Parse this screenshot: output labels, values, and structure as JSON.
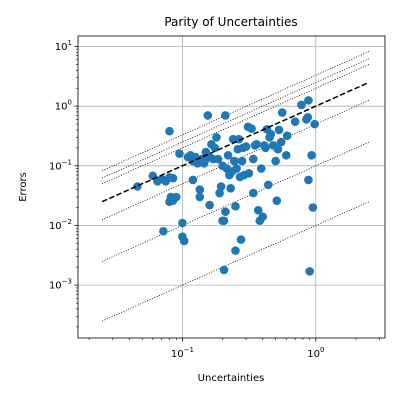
{
  "chart_data": {
    "type": "scatter",
    "title": "Parity of Uncertainties",
    "xlabel": "Uncertainties",
    "ylabel": "Errors",
    "xscale": "log",
    "yscale": "log",
    "xlim": [
      0.0165,
      3.3
    ],
    "ylim": [
      0.00013,
      15
    ],
    "grid": true,
    "x_ticks": [
      {
        "value": 0.1,
        "base": "10",
        "exp": "−1"
      },
      {
        "value": 1,
        "base": "10",
        "exp": "0"
      }
    ],
    "y_ticks": [
      {
        "value": 0.001,
        "base": "10",
        "exp": "−3"
      },
      {
        "value": 0.01,
        "base": "10",
        "exp": "−2"
      },
      {
        "value": 0.1,
        "base": "10",
        "exp": "−1"
      },
      {
        "value": 1,
        "base": "10",
        "exp": "0"
      },
      {
        "value": 10,
        "base": "10",
        "exp": "1"
      }
    ],
    "marker_color": "#1f77b4",
    "parity_line": {
      "style": "dashed",
      "color": "#000000",
      "slope": 1,
      "x_range": [
        0.025,
        2.5
      ]
    },
    "reference_lines": {
      "style": "dotted",
      "color": "#000000",
      "x_range": [
        0.025,
        2.5
      ],
      "factors": [
        0.01,
        0.1,
        0.5,
        2,
        2.5,
        3.3
      ]
    },
    "points": [
      {
        "x": 0.046,
        "y": 0.045
      },
      {
        "x": 0.06,
        "y": 0.068
      },
      {
        "x": 0.065,
        "y": 0.055
      },
      {
        "x": 0.07,
        "y": 0.06
      },
      {
        "x": 0.075,
        "y": 0.055
      },
      {
        "x": 0.08,
        "y": 0.38
      },
      {
        "x": 0.08,
        "y": 0.064
      },
      {
        "x": 0.085,
        "y": 0.062
      },
      {
        "x": 0.072,
        "y": 0.008
      },
      {
        "x": 0.08,
        "y": 0.025
      },
      {
        "x": 0.082,
        "y": 0.03
      },
      {
        "x": 0.085,
        "y": 0.026
      },
      {
        "x": 0.09,
        "y": 0.03
      },
      {
        "x": 0.095,
        "y": 0.16
      },
      {
        "x": 0.1,
        "y": 0.011
      },
      {
        "x": 0.1,
        "y": 0.0065
      },
      {
        "x": 0.103,
        "y": 0.0055
      },
      {
        "x": 0.11,
        "y": 0.14
      },
      {
        "x": 0.115,
        "y": 0.15
      },
      {
        "x": 0.12,
        "y": 0.12
      },
      {
        "x": 0.12,
        "y": 0.058
      },
      {
        "x": 0.125,
        "y": 0.14
      },
      {
        "x": 0.13,
        "y": 0.11
      },
      {
        "x": 0.135,
        "y": 0.04
      },
      {
        "x": 0.135,
        "y": 0.03
      },
      {
        "x": 0.14,
        "y": 0.13
      },
      {
        "x": 0.145,
        "y": 0.11
      },
      {
        "x": 0.15,
        "y": 0.17
      },
      {
        "x": 0.15,
        "y": 0.13
      },
      {
        "x": 0.155,
        "y": 0.7
      },
      {
        "x": 0.16,
        "y": 0.14
      },
      {
        "x": 0.16,
        "y": 0.022
      },
      {
        "x": 0.165,
        "y": 0.23
      },
      {
        "x": 0.17,
        "y": 0.13
      },
      {
        "x": 0.175,
        "y": 0.2
      },
      {
        "x": 0.18,
        "y": 0.3
      },
      {
        "x": 0.185,
        "y": 0.13
      },
      {
        "x": 0.19,
        "y": 0.035
      },
      {
        "x": 0.195,
        "y": 0.045
      },
      {
        "x": 0.2,
        "y": 0.1
      },
      {
        "x": 0.2,
        "y": 0.012
      },
      {
        "x": 0.205,
        "y": 0.0018
      },
      {
        "x": 0.205,
        "y": 0.012
      },
      {
        "x": 0.21,
        "y": 0.7
      },
      {
        "x": 0.21,
        "y": 0.017
      },
      {
        "x": 0.215,
        "y": 0.09
      },
      {
        "x": 0.22,
        "y": 0.15
      },
      {
        "x": 0.225,
        "y": 0.07
      },
      {
        "x": 0.23,
        "y": 0.042
      },
      {
        "x": 0.235,
        "y": 0.08
      },
      {
        "x": 0.24,
        "y": 0.28
      },
      {
        "x": 0.245,
        "y": 0.12
      },
      {
        "x": 0.25,
        "y": 0.0038
      },
      {
        "x": 0.25,
        "y": 0.021
      },
      {
        "x": 0.255,
        "y": 0.09
      },
      {
        "x": 0.26,
        "y": 0.19
      },
      {
        "x": 0.265,
        "y": 0.28
      },
      {
        "x": 0.27,
        "y": 0.065
      },
      {
        "x": 0.275,
        "y": 0.0058
      },
      {
        "x": 0.28,
        "y": 0.12
      },
      {
        "x": 0.285,
        "y": 0.2
      },
      {
        "x": 0.29,
        "y": 0.07
      },
      {
        "x": 0.3,
        "y": 0.21
      },
      {
        "x": 0.31,
        "y": 0.45
      },
      {
        "x": 0.315,
        "y": 0.075
      },
      {
        "x": 0.33,
        "y": 0.42
      },
      {
        "x": 0.34,
        "y": 0.13
      },
      {
        "x": 0.34,
        "y": 0.035
      },
      {
        "x": 0.35,
        "y": 0.22
      },
      {
        "x": 0.36,
        "y": 0.23
      },
      {
        "x": 0.37,
        "y": 0.018
      },
      {
        "x": 0.38,
        "y": 0.012
      },
      {
        "x": 0.39,
        "y": 0.09
      },
      {
        "x": 0.4,
        "y": 0.014
      },
      {
        "x": 0.41,
        "y": 0.22
      },
      {
        "x": 0.42,
        "y": 0.2
      },
      {
        "x": 0.43,
        "y": 0.41
      },
      {
        "x": 0.44,
        "y": 0.048
      },
      {
        "x": 0.45,
        "y": 0.3
      },
      {
        "x": 0.46,
        "y": 0.34
      },
      {
        "x": 0.48,
        "y": 0.22
      },
      {
        "x": 0.5,
        "y": 0.12
      },
      {
        "x": 0.51,
        "y": 0.026
      },
      {
        "x": 0.52,
        "y": 0.19
      },
      {
        "x": 0.53,
        "y": 0.4
      },
      {
        "x": 0.55,
        "y": 0.25
      },
      {
        "x": 0.56,
        "y": 0.78
      },
      {
        "x": 0.6,
        "y": 0.15
      },
      {
        "x": 0.61,
        "y": 0.32
      },
      {
        "x": 0.7,
        "y": 0.55
      },
      {
        "x": 0.78,
        "y": 1.05
      },
      {
        "x": 0.85,
        "y": 0.6
      },
      {
        "x": 0.87,
        "y": 0.65
      },
      {
        "x": 0.88,
        "y": 1.25
      },
      {
        "x": 0.88,
        "y": 0.058
      },
      {
        "x": 0.9,
        "y": 0.0017
      },
      {
        "x": 0.93,
        "y": 0.15
      },
      {
        "x": 0.95,
        "y": 0.02
      },
      {
        "x": 0.98,
        "y": 0.5
      }
    ]
  }
}
